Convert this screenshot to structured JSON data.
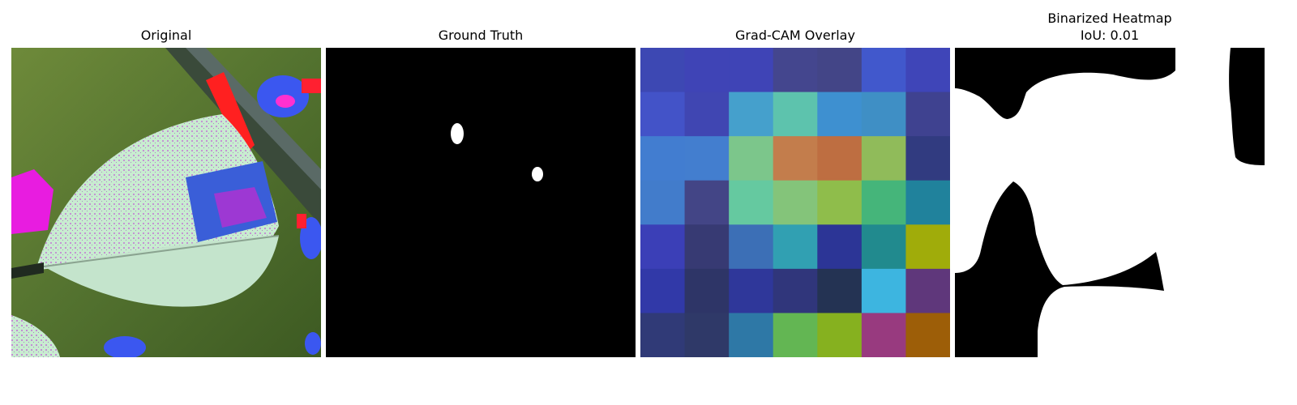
{
  "panels": [
    {
      "title": "Original"
    },
    {
      "title": "Ground Truth"
    },
    {
      "title": "Grad-CAM Overlay",
      "heatmap_grid_size": 7
    },
    {
      "title": "Binarized Heatmap",
      "subtitle": "IoU: 0.01"
    }
  ],
  "colors": {
    "background": "#ffffff",
    "mask_fg": "#ffffff",
    "mask_bg": "#000000"
  },
  "gradcam_cells": [
    [
      "#3d48b3",
      "#3f44b6",
      "#3f44b6",
      "#44468e",
      "#434587",
      "#4158cc",
      "#3f45b8"
    ],
    [
      "#4353c8",
      "#4046b2",
      "#45a0cc",
      "#5dc3ad",
      "#3e90d0",
      "#3f8fc5",
      "#3f4290"
    ],
    [
      "#427dd0",
      "#437ecf",
      "#7cc68b",
      "#c37d4c",
      "#be6e41",
      "#90bb5a",
      "#313b80"
    ],
    [
      "#427ccb",
      "#434586",
      "#65c9a0",
      "#84c47a",
      "#8fbd4b",
      "#45b57a",
      "#20829c"
    ],
    [
      "#3b3fb7",
      "#373a73",
      "#3c6fb6",
      "#31a0b2",
      "#2c3596",
      "#218a8e",
      "#a0ac0a"
    ],
    [
      "#3139a8",
      "#2e3567",
      "#2f379a",
      "#30367b",
      "#243353",
      "#3db5e0",
      "#5f377b"
    ],
    [
      "#303a77",
      "#2f3968",
      "#2e78a6",
      "#63b653",
      "#86b11f",
      "#983a7f",
      "#9d5e08"
    ]
  ]
}
